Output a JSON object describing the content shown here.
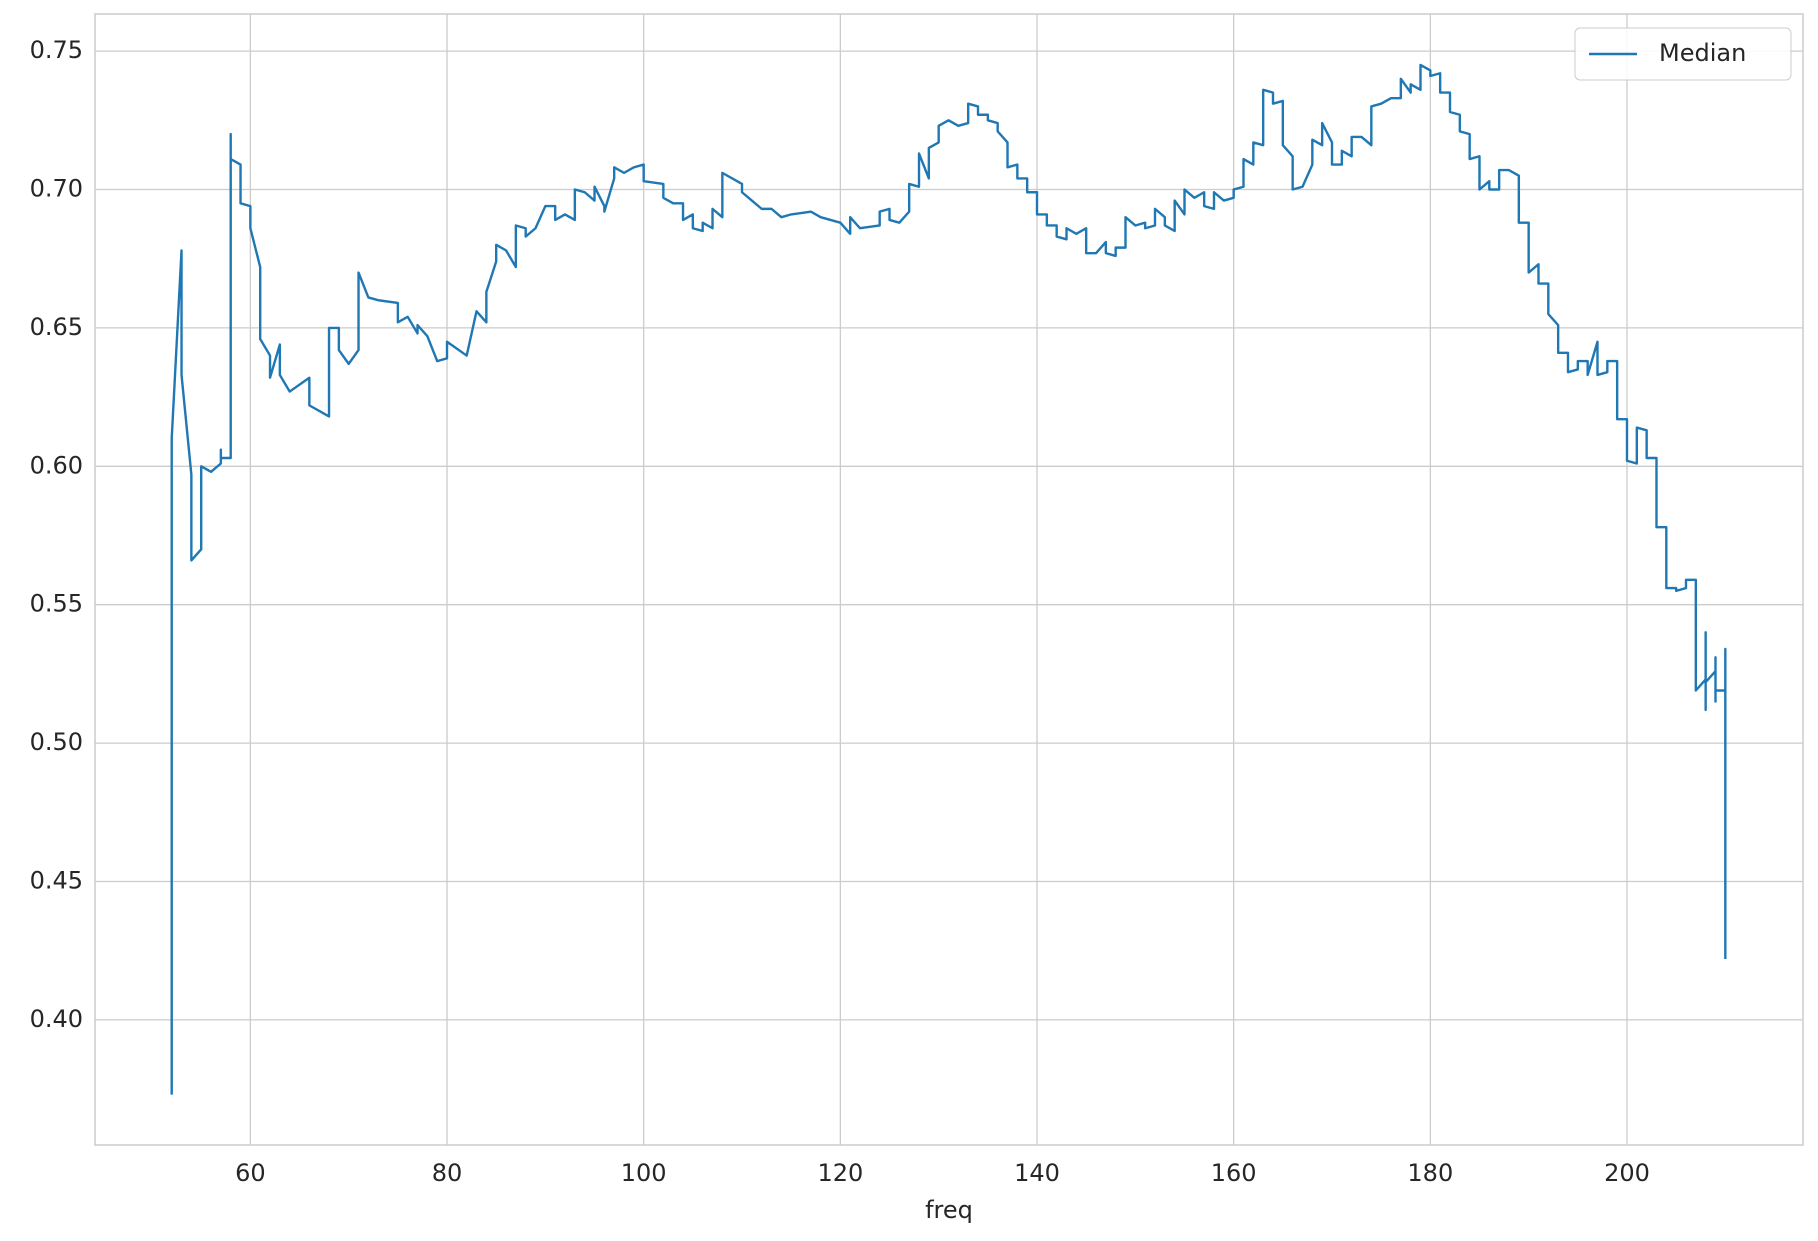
{
  "chart_data": {
    "type": "line",
    "xlabel": "freq",
    "x": [
      52,
      52,
      53,
      53,
      54,
      54,
      55,
      55,
      56,
      57,
      57,
      57,
      58,
      58,
      58,
      59,
      59,
      60,
      60,
      61,
      61,
      62,
      62,
      63,
      63,
      64,
      66,
      66,
      68,
      68,
      69,
      69,
      70,
      71,
      71,
      72,
      73,
      75,
      75,
      76,
      77,
      77,
      78,
      79,
      80,
      80,
      82,
      83,
      84,
      84,
      85,
      85,
      86,
      87,
      87,
      88,
      88,
      89,
      90,
      91,
      91,
      92,
      93,
      93,
      94,
      95,
      95,
      96,
      96,
      97,
      97,
      98,
      99,
      100,
      100,
      102,
      102,
      103,
      104,
      104,
      105,
      105,
      106,
      106,
      107,
      107,
      108,
      108,
      110,
      110,
      111,
      112,
      113,
      114,
      115,
      117,
      118,
      120,
      121,
      121,
      122,
      124,
      124,
      125,
      125,
      126,
      127,
      127,
      128,
      128,
      129,
      129,
      130,
      130,
      131,
      132,
      133,
      133,
      134,
      134,
      135,
      135,
      136,
      136,
      137,
      137,
      138,
      138,
      139,
      139,
      140,
      140,
      141,
      141,
      142,
      142,
      143,
      143,
      144,
      145,
      145,
      146,
      147,
      147,
      148,
      148,
      149,
      149,
      150,
      151,
      151,
      152,
      152,
      153,
      153,
      154,
      154,
      155,
      155,
      156,
      157,
      157,
      158,
      158,
      159,
      160,
      160,
      161,
      161,
      162,
      162,
      163,
      163,
      164,
      164,
      165,
      165,
      166,
      166,
      167,
      168,
      168,
      169,
      169,
      170,
      170,
      171,
      171,
      172,
      172,
      173,
      174,
      174,
      175,
      176,
      177,
      177,
      178,
      178,
      179,
      179,
      180,
      180,
      181,
      181,
      182,
      182,
      183,
      183,
      184,
      184,
      185,
      185,
      186,
      186,
      187,
      187,
      188,
      189,
      189,
      190,
      190,
      191,
      191,
      192,
      192,
      193,
      193,
      194,
      194,
      195,
      195,
      196,
      196,
      197,
      197,
      198,
      198,
      199,
      199,
      200,
      200,
      201,
      201,
      202,
      202,
      203,
      203,
      204,
      204,
      205,
      205,
      206,
      206,
      207,
      207,
      208,
      208,
      208,
      208,
      209,
      209,
      209,
      209,
      210,
      210,
      210
    ],
    "series": [
      {
        "name": "Median",
        "color": "#1f77b4",
        "values": [
          0.373,
          0.61,
          0.678,
          0.633,
          0.597,
          0.566,
          0.57,
          0.6,
          0.598,
          0.601,
          0.606,
          0.603,
          0.603,
          0.72,
          0.711,
          0.709,
          0.695,
          0.694,
          0.686,
          0.672,
          0.646,
          0.64,
          0.632,
          0.644,
          0.633,
          0.627,
          0.632,
          0.622,
          0.618,
          0.65,
          0.65,
          0.642,
          0.637,
          0.642,
          0.67,
          0.661,
          0.66,
          0.659,
          0.652,
          0.654,
          0.648,
          0.651,
          0.647,
          0.638,
          0.639,
          0.645,
          0.64,
          0.656,
          0.652,
          0.663,
          0.674,
          0.68,
          0.678,
          0.672,
          0.687,
          0.686,
          0.683,
          0.686,
          0.694,
          0.694,
          0.689,
          0.691,
          0.689,
          0.7,
          0.699,
          0.696,
          0.701,
          0.694,
          0.692,
          0.704,
          0.708,
          0.706,
          0.708,
          0.709,
          0.703,
          0.702,
          0.697,
          0.695,
          0.695,
          0.689,
          0.691,
          0.686,
          0.685,
          0.688,
          0.686,
          0.693,
          0.69,
          0.706,
          0.702,
          0.699,
          0.696,
          0.693,
          0.693,
          0.69,
          0.691,
          0.692,
          0.69,
          0.688,
          0.684,
          0.69,
          0.686,
          0.687,
          0.692,
          0.693,
          0.689,
          0.688,
          0.692,
          0.702,
          0.701,
          0.713,
          0.704,
          0.715,
          0.717,
          0.723,
          0.725,
          0.723,
          0.724,
          0.731,
          0.73,
          0.727,
          0.727,
          0.725,
          0.724,
          0.721,
          0.717,
          0.708,
          0.709,
          0.704,
          0.704,
          0.699,
          0.699,
          0.691,
          0.691,
          0.687,
          0.687,
          0.683,
          0.682,
          0.686,
          0.684,
          0.686,
          0.677,
          0.677,
          0.681,
          0.677,
          0.676,
          0.679,
          0.679,
          0.69,
          0.687,
          0.688,
          0.686,
          0.687,
          0.693,
          0.69,
          0.687,
          0.685,
          0.696,
          0.691,
          0.7,
          0.697,
          0.699,
          0.694,
          0.693,
          0.699,
          0.696,
          0.697,
          0.7,
          0.701,
          0.711,
          0.709,
          0.717,
          0.716,
          0.736,
          0.735,
          0.731,
          0.732,
          0.716,
          0.712,
          0.7,
          0.701,
          0.709,
          0.718,
          0.716,
          0.724,
          0.717,
          0.709,
          0.709,
          0.714,
          0.712,
          0.719,
          0.719,
          0.716,
          0.73,
          0.731,
          0.733,
          0.733,
          0.74,
          0.735,
          0.738,
          0.736,
          0.745,
          0.743,
          0.741,
          0.742,
          0.735,
          0.735,
          0.728,
          0.727,
          0.721,
          0.72,
          0.711,
          0.712,
          0.7,
          0.703,
          0.7,
          0.7,
          0.707,
          0.707,
          0.705,
          0.688,
          0.688,
          0.67,
          0.673,
          0.666,
          0.666,
          0.655,
          0.651,
          0.641,
          0.641,
          0.634,
          0.635,
          0.638,
          0.638,
          0.633,
          0.645,
          0.633,
          0.634,
          0.638,
          0.638,
          0.617,
          0.617,
          0.602,
          0.601,
          0.614,
          0.613,
          0.603,
          0.603,
          0.578,
          0.578,
          0.556,
          0.556,
          0.555,
          0.556,
          0.559,
          0.559,
          0.519,
          0.523,
          0.512,
          0.54,
          0.522,
          0.526,
          0.515,
          0.531,
          0.519,
          0.519,
          0.534,
          0.422
        ]
      }
    ],
    "xlim": [
      44.2,
      217.9
    ],
    "ylim": [
      0.3548,
      0.7634
    ],
    "xticks": [
      60,
      80,
      100,
      120,
      140,
      160,
      180,
      200
    ],
    "yticks": [
      {
        "value": 0.4,
        "label": "0.40"
      },
      0.45,
      {
        "value": 0.5,
        "label": "0.50"
      },
      0.55,
      {
        "value": 0.6,
        "label": "0.60"
      },
      0.65,
      {
        "value": 0.7,
        "label": "0.70"
      },
      0.75
    ],
    "grid": true,
    "legend": "upper right"
  }
}
